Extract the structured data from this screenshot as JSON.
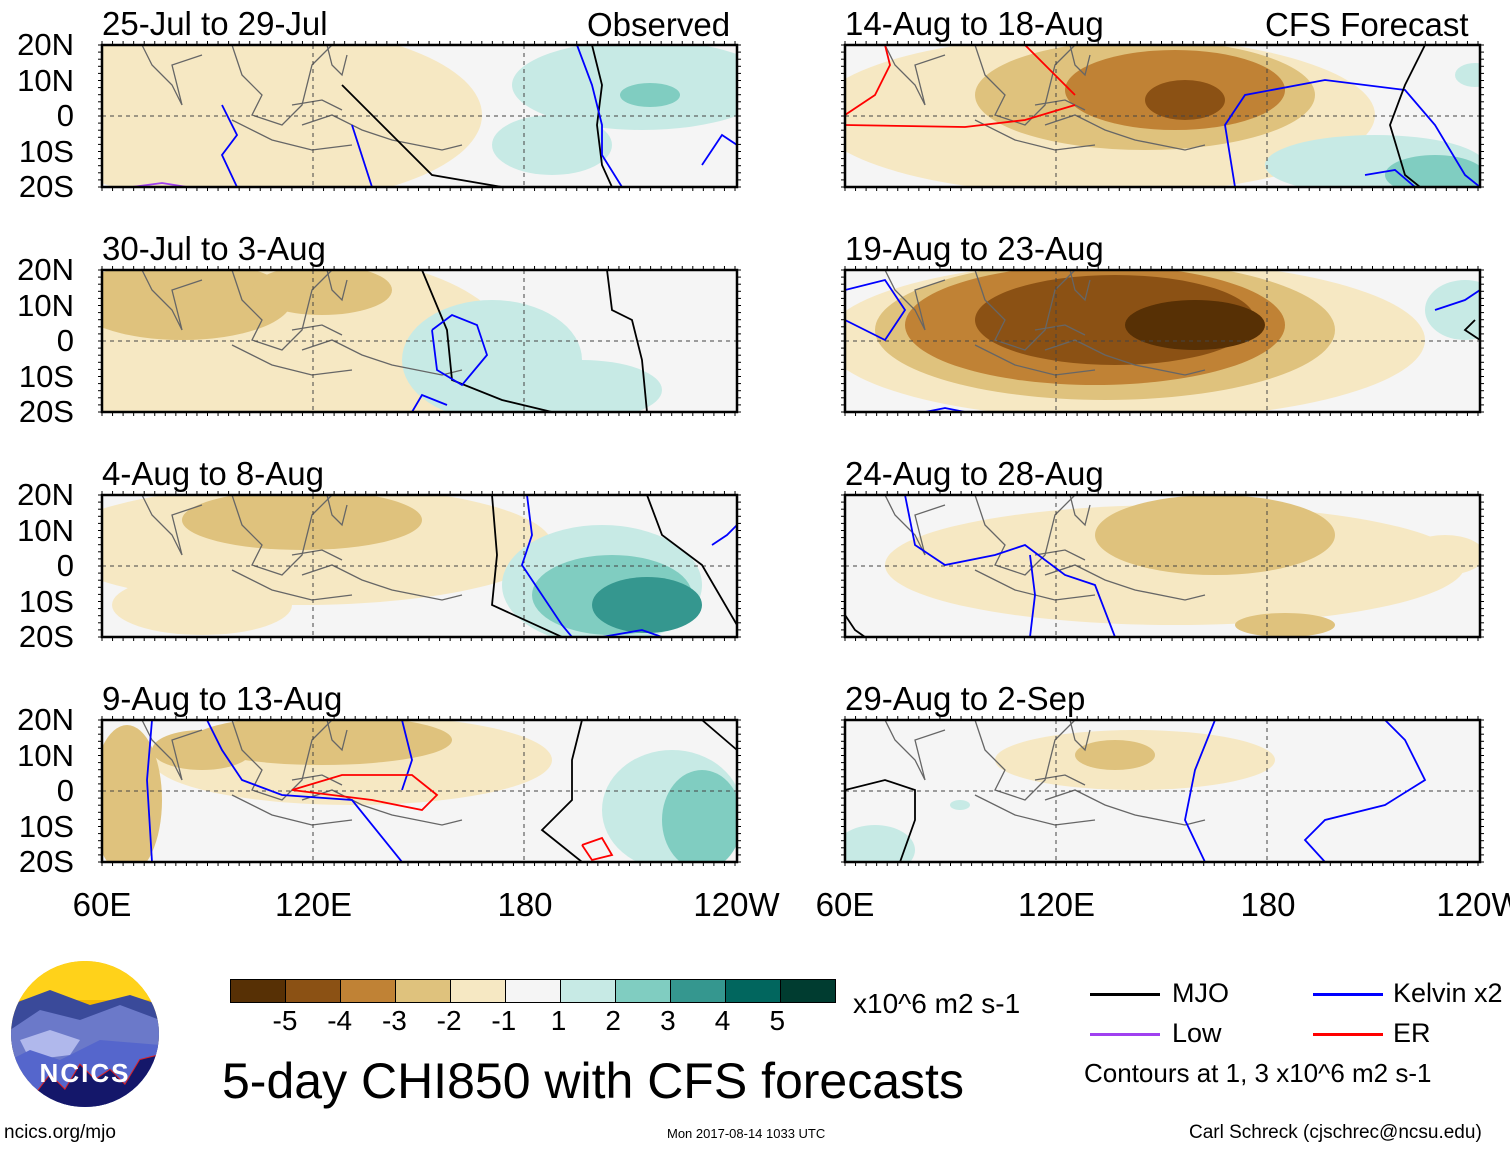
{
  "header": {
    "left_label": "Observed",
    "right_label": "CFS Forecast"
  },
  "panels_left": [
    {
      "title": "25-Jul to 29-Jul"
    },
    {
      "title": "30-Jul to 3-Aug"
    },
    {
      "title": "4-Aug to 8-Aug"
    },
    {
      "title": "9-Aug to 13-Aug"
    }
  ],
  "panels_right": [
    {
      "title": "14-Aug to 18-Aug"
    },
    {
      "title": "19-Aug to 23-Aug"
    },
    {
      "title": "24-Aug to 28-Aug"
    },
    {
      "title": "29-Aug to 2-Sep"
    }
  ],
  "lat_labels": [
    "20N",
    "10N",
    "0",
    "10S",
    "20S"
  ],
  "lon_labels": [
    "60E",
    "120E",
    "180",
    "120W"
  ],
  "colorbar": {
    "colors": [
      "#573005",
      "#8b5114",
      "#c08235",
      "#dfc27d",
      "#f6e8c3",
      "#f5f5f5",
      "#c7eae5",
      "#80cdc1",
      "#35978f",
      "#01665e",
      "#003c30"
    ],
    "labels": [
      "-5",
      "-4",
      "-3",
      "-2",
      "-1",
      "1",
      "2",
      "3",
      "4",
      "5"
    ],
    "units": "x10^6 m2 s-1"
  },
  "legend": {
    "items": [
      {
        "label": "MJO",
        "color": "#000000"
      },
      {
        "label": "Kelvin x2",
        "color": "#0000ff"
      },
      {
        "label": "Low",
        "color": "#a040f0"
      },
      {
        "label": "ER",
        "color": "#ff0000"
      }
    ],
    "contours_note": "Contours at 1, 3 x10^6 m2 s-1"
  },
  "title": "5-day CHI850 with CFS forecasts",
  "logo_text": "NCICS",
  "footer": {
    "url": "ncics.org/mjo",
    "timestamp": "Mon 2017-08-14 1033 UTC",
    "author": "Carl Schreck (cjschrec@ncsu.edu)"
  }
}
